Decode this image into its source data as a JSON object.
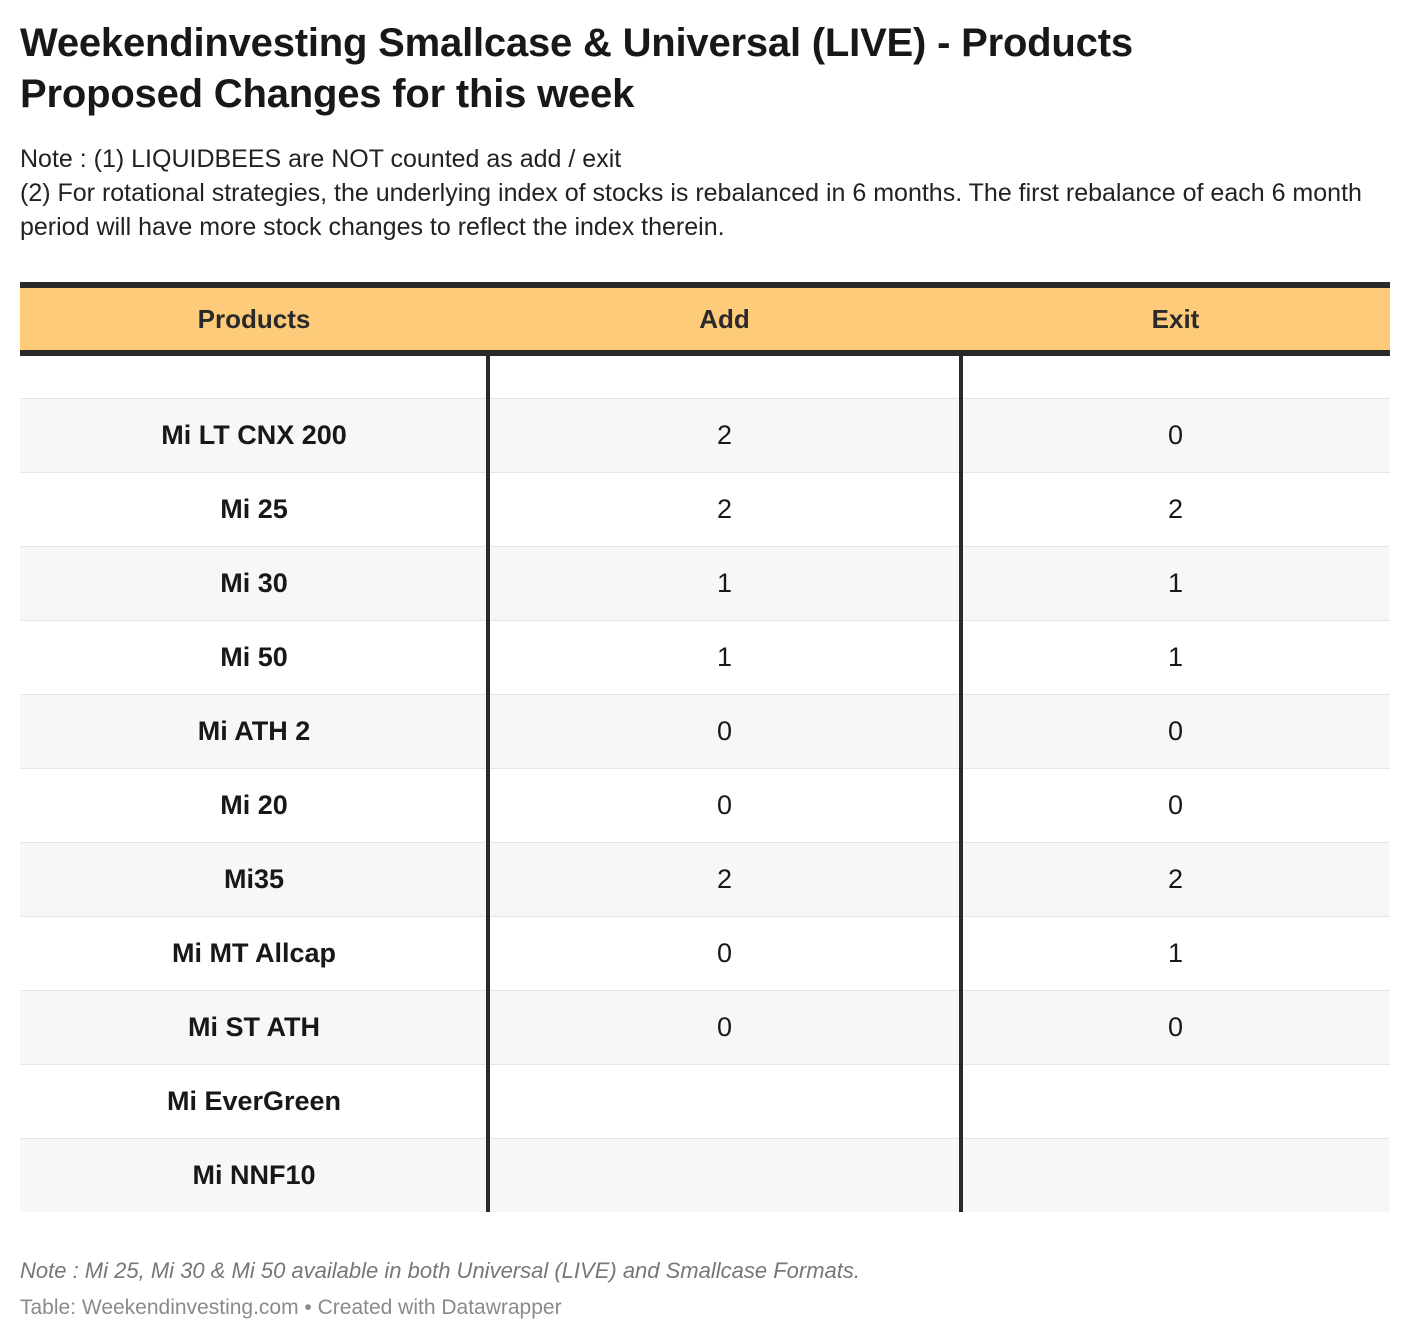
{
  "title_line1": "Weekendinvesting Smallcase & Universal (LIVE) - Products",
  "title_line2": "Proposed Changes for this week",
  "notes": [
    "Note : (1) LIQUIDBEES are NOT counted as add / exit",
    "(2) For rotational strategies, the underlying index of stocks is rebalanced in 6 months. The first rebalance of each 6 month period will have more stock changes to reflect the index therein."
  ],
  "footnote": "Note : Mi 25, Mi 30 & Mi 50 available in both Universal (LIVE) and Smallcase Formats.",
  "source": "Table: Weekendinvesting.com • Created with Datawrapper",
  "colors": {
    "header_bg": "#fdcb79",
    "rule": "#2a2a2a",
    "stripe": "#f7f7f7"
  },
  "chart_data": {
    "type": "table",
    "columns": [
      "Products",
      "Add",
      "Exit"
    ],
    "rows": [
      {
        "product": "Mi LT CNX 200",
        "add": "2",
        "exit": "0"
      },
      {
        "product": "Mi 25",
        "add": "2",
        "exit": "2"
      },
      {
        "product": "Mi 30",
        "add": "1",
        "exit": "1"
      },
      {
        "product": "Mi 50",
        "add": "1",
        "exit": "1"
      },
      {
        "product": "Mi ATH 2",
        "add": "0",
        "exit": "0"
      },
      {
        "product": "Mi 20",
        "add": "0",
        "exit": "0"
      },
      {
        "product": "Mi35",
        "add": "2",
        "exit": "2"
      },
      {
        "product": "Mi MT Allcap",
        "add": "0",
        "exit": "1"
      },
      {
        "product": "Mi ST ATH",
        "add": "0",
        "exit": "0"
      },
      {
        "product": "Mi EverGreen",
        "add": "",
        "exit": ""
      },
      {
        "product": "Mi NNF10",
        "add": "",
        "exit": ""
      }
    ]
  }
}
